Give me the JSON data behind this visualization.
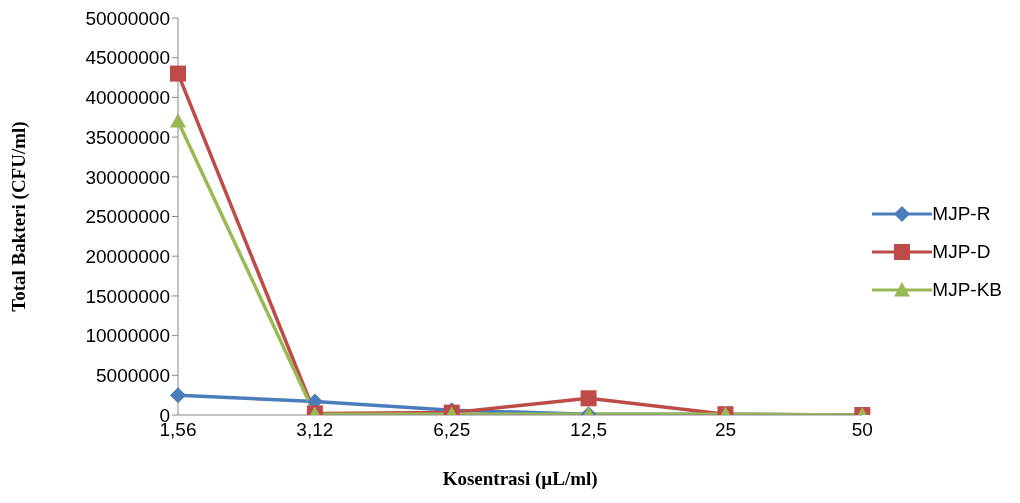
{
  "chart_data": {
    "type": "line",
    "xlabel": "Kosentrasi (µL/ml)",
    "ylabel": "Total Bakteri (CFU/ml)",
    "categories": [
      "1,56",
      "3,12",
      "6,25",
      "12,5",
      "25",
      "50"
    ],
    "series": [
      {
        "name": "MJP-R",
        "color": "#4a7ebb",
        "marker": "diamond",
        "values": [
          2500000,
          1700000,
          600000,
          100000,
          100000,
          0
        ]
      },
      {
        "name": "MJP-D",
        "color": "#be4b48",
        "marker": "square",
        "values": [
          43000000,
          200000,
          300000,
          2100000,
          100000,
          0
        ]
      },
      {
        "name": "MJP-KB",
        "color": "#98b954",
        "marker": "triangle",
        "values": [
          37000000,
          100000,
          100000,
          100000,
          100000,
          0
        ]
      }
    ],
    "ylim": [
      0,
      50000000
    ],
    "yticks": [
      0,
      5000000,
      10000000,
      15000000,
      20000000,
      25000000,
      30000000,
      35000000,
      40000000,
      45000000,
      50000000
    ],
    "grid": false,
    "legend": "right",
    "line_style": "solid"
  }
}
